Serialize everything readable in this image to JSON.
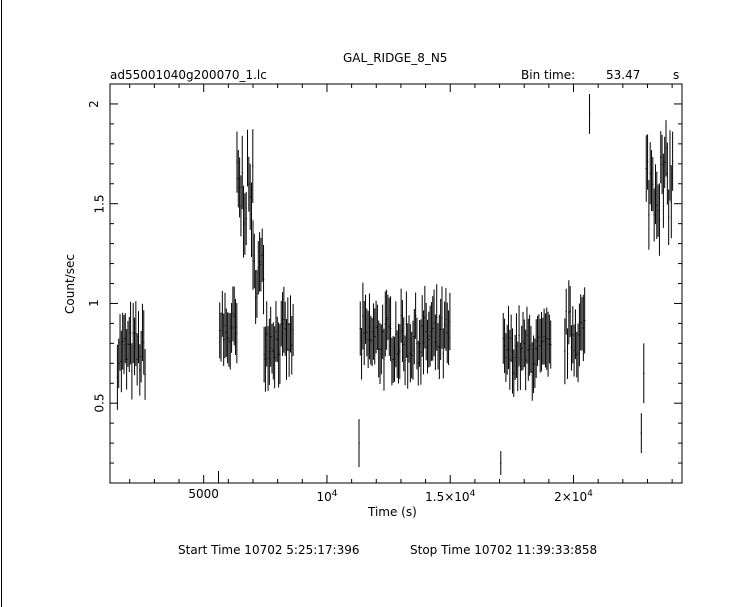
{
  "title": "GAL_RIDGE_8_N5",
  "file_label": "ad55001040g200070_1.lc",
  "bin_time_label": "Bin time:",
  "bin_time_value": "53.47",
  "bin_time_unit": "s",
  "footer": {
    "start": "Start Time 10702  5:25:17:396",
    "stop": "Stop Time 10702 11:39:33:858"
  },
  "chart_data": {
    "type": "scatter",
    "title": "GAL_RIDGE_8_N5",
    "xlabel": "Time (s)",
    "ylabel": "Count/sec",
    "xlim": [
      1200,
      24400
    ],
    "ylim": [
      0.1,
      2.1
    ],
    "x_ticks": [
      {
        "value": 5000,
        "label": "5000"
      },
      {
        "value": 10000,
        "label": "10^4"
      },
      {
        "value": 15000,
        "label": "1.5×10^4"
      },
      {
        "value": 20000,
        "label": "2×10^4"
      }
    ],
    "y_ticks": [
      {
        "value": 0.5,
        "label": "0.5"
      },
      {
        "value": 1.0,
        "label": "1"
      },
      {
        "value": 1.5,
        "label": "1.5"
      },
      {
        "value": 2.0,
        "label": "2"
      }
    ],
    "segments": [
      {
        "x_start": 1500,
        "x_end": 2650,
        "level": 0.75,
        "spread": 0.12,
        "err": 0.14
      },
      {
        "x_start": 5650,
        "x_end": 6350,
        "level": 0.85,
        "spread": 0.12,
        "err": 0.14
      },
      {
        "x_start": 6350,
        "x_end": 7000,
        "level": 1.55,
        "spread": 0.18,
        "err": 0.16
      },
      {
        "x_start": 7000,
        "x_end": 7450,
        "level": 1.15,
        "spread": 0.12,
        "err": 0.15
      },
      {
        "x_start": 7450,
        "x_end": 8650,
        "level": 0.82,
        "spread": 0.1,
        "err": 0.14
      },
      {
        "x_start": 11350,
        "x_end": 15000,
        "level": 0.82,
        "spread": 0.12,
        "err": 0.14
      },
      {
        "x_start": 17150,
        "x_end": 19100,
        "level": 0.75,
        "spread": 0.1,
        "err": 0.14
      },
      {
        "x_start": 19650,
        "x_end": 20500,
        "level": 0.85,
        "spread": 0.12,
        "err": 0.14
      },
      {
        "x_start": 22950,
        "x_end": 24050,
        "level": 1.6,
        "spread": 0.18,
        "err": 0.16
      }
    ],
    "isolated_points": [
      {
        "x": 5600,
        "y": 0.1,
        "err": 0.06
      },
      {
        "x": 11300,
        "y": 0.3,
        "err": 0.12
      },
      {
        "x": 17050,
        "y": 0.2,
        "err": 0.06
      },
      {
        "x": 20650,
        "y": 1.95,
        "err": 0.1
      },
      {
        "x": 22750,
        "y": 0.35,
        "err": 0.1
      },
      {
        "x": 22850,
        "y": 0.65,
        "err": 0.15
      }
    ]
  }
}
